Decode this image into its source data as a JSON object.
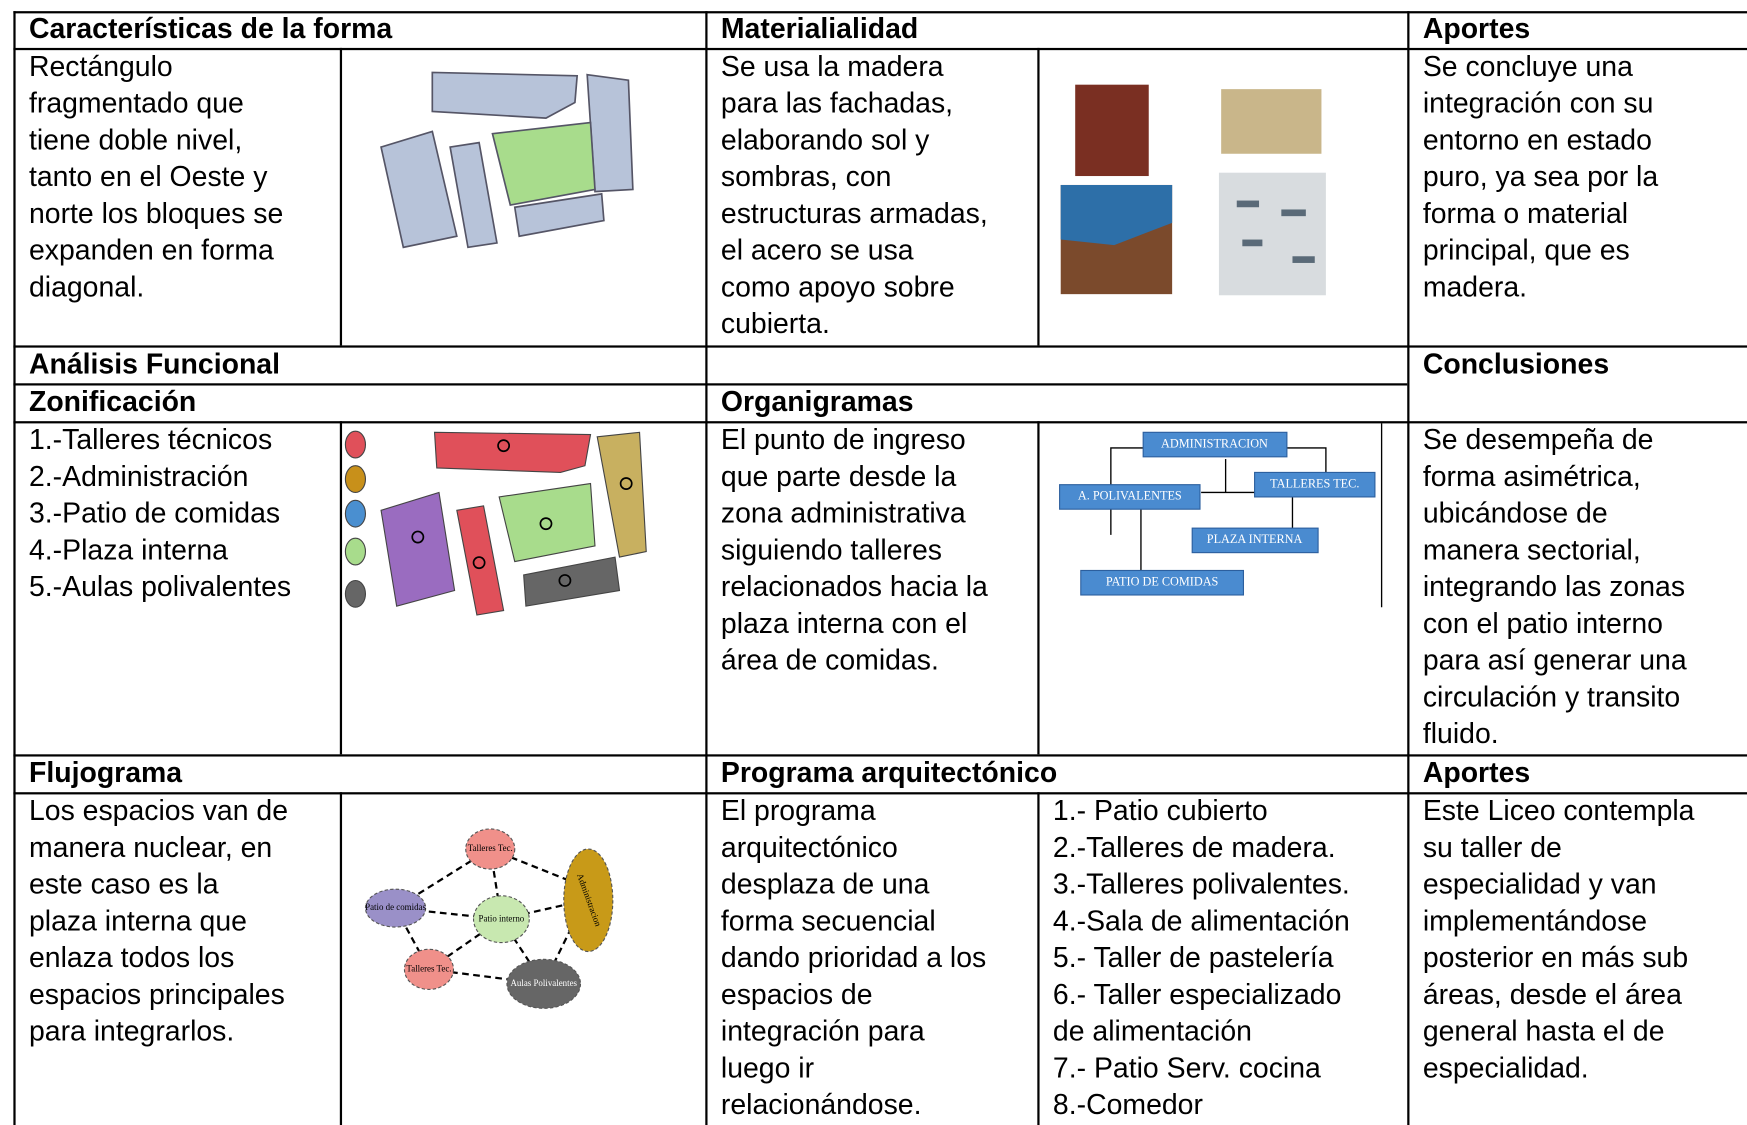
{
  "header": {
    "forma": "Características de la forma",
    "materialidad": "Materialialidad",
    "aportes": "Aportes"
  },
  "forma_text": [
    "Rectángulo",
    "fragmentado que",
    "tiene doble nivel,",
    "tanto en el Oeste y",
    "norte los bloques se",
    "expanden en forma",
    "diagonal."
  ],
  "materialidad_text": [
    "Se usa la madera",
    "para las fachadas,",
    "elaborando sol y",
    "sombras, con",
    "estructuras armadas,",
    "el acero se usa",
    "como apoyo sobre",
    "cubierta."
  ],
  "aportes_text": [
    "Se concluye una",
    "integración con su",
    "entorno en estado",
    "puro, ya sea por la",
    "forma o material",
    "principal, que es",
    "madera."
  ],
  "analisis": {
    "title": "Análisis Funcional",
    "conclusiones": "Conclusiones",
    "zonificacion": "Zonificación",
    "organigramas": "Organigramas"
  },
  "zonas": [
    "1.-Talleres técnicos",
    "2.-Administración",
    "3.-Patio de comidas",
    "4.-Plaza interna",
    "5.-Aulas polivalentes"
  ],
  "organigrama_text": [
    "El punto de ingreso",
    "que parte desde la",
    "zona administrativa",
    "siguiendo talleres",
    "relacionados hacia la",
    "plaza interna con el",
    "área de comidas."
  ],
  "organigrama_nodes": [
    "ADMINISTRACION",
    "A. POLIVALENTES",
    "TALLERES TEC.",
    "PLAZA INTERNA",
    "PATIO DE COMIDAS"
  ],
  "conclusiones_text": [
    "Se desempeña de",
    "forma asimétrica,",
    "ubicándose de",
    "manera sectorial,",
    "integrando las  zonas",
    "con el patio interno",
    "para así generar una",
    "circulación y transito",
    "fluido."
  ],
  "lower": {
    "flujograma": "Flujograma",
    "programa": "Programa arquitectónico",
    "aportes": "Aportes"
  },
  "flujograma_text": [
    "Los espacios van de",
    "manera nuclear, en",
    "este caso es la",
    "plaza interna que",
    "enlaza todos los",
    "espacios principales",
    "para integrarlos."
  ],
  "flujograma_nodes": [
    "Talleres Tec.",
    "Patio de comidas",
    "Patio interno",
    "Administracion",
    "Talleres Tec.",
    "Aulas Polivalentes"
  ],
  "programa_text": [
    "El programa",
    "arquitectónico",
    "desplaza de una",
    "forma secuencial",
    "dando prioridad a los",
    "espacios de",
    "integración para",
    "luego ir",
    "relacionándose."
  ],
  "programa_list": [
    "1.- Patio cubierto",
    "2.-Talleres de madera.",
    "3.-Talleres polivalentes.",
    "4.-Sala de alimentación",
    "5.- Taller de pastelería",
    "6.- Taller especializado",
    "de alimentación",
    "7.- Patio Serv. cocina",
    "8.-Comedor"
  ],
  "aportes2_text": [
    "Este Liceo contempla",
    "su taller de",
    "especialidad y van",
    "implementándose",
    "posterior en más sub",
    "áreas, desde el área",
    "general hasta el de",
    "especialidad."
  ]
}
